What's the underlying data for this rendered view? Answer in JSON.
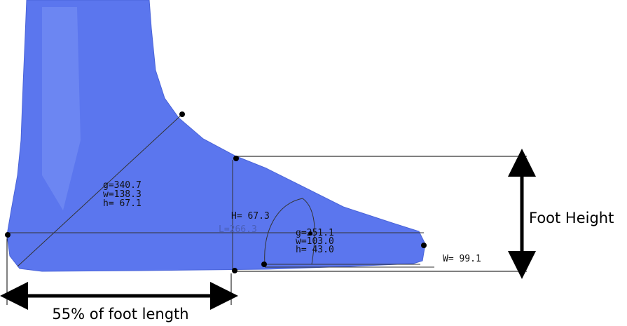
{
  "instep": {
    "girth": "g=340.7",
    "width": "w=138.3",
    "height": "h= 67.1"
  },
  "foot_height_measure": "H= 67.3",
  "foot_length_measure": "L=266.3",
  "ball": {
    "girth": "g=251.1",
    "width": "w=103.0",
    "height": "h= 43.0"
  },
  "foot_width_measure": "W= 99.1",
  "foot_height_label": "Foot Height",
  "length_fraction_label": "55% of foot length"
}
